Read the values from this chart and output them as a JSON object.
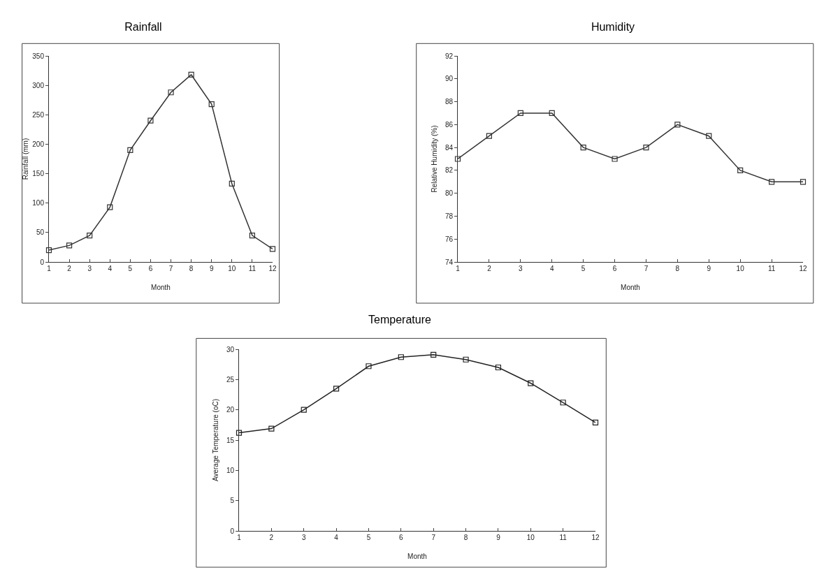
{
  "chart_data": [
    {
      "type": "line",
      "title": "Rainfall",
      "xlabel": "Month",
      "ylabel": "Rainfall (mm)",
      "x": [
        1,
        2,
        3,
        4,
        5,
        6,
        7,
        8,
        9,
        10,
        11,
        12
      ],
      "series": [
        {
          "color": "#333333",
          "values": [
            20,
            28,
            45,
            93,
            190,
            240,
            288,
            318,
            268,
            133,
            45,
            22
          ]
        }
      ],
      "xlim": [
        1,
        12
      ],
      "xticks": [
        1,
        2,
        3,
        4,
        5,
        6,
        7,
        8,
        9,
        10,
        11,
        12
      ],
      "ylim": [
        0,
        350
      ],
      "yticks": [
        0,
        50,
        100,
        150,
        200,
        250,
        300,
        350
      ],
      "marker": "square",
      "line_style": "solid"
    },
    {
      "type": "line",
      "title": "Humidity",
      "xlabel": "Month",
      "ylabel": "Relative Humidity (%)",
      "x": [
        1,
        2,
        3,
        4,
        5,
        6,
        7,
        8,
        9,
        10,
        11,
        12
      ],
      "series": [
        {
          "color": "#333333",
          "values": [
            83,
            85,
            87,
            87,
            84,
            83,
            84,
            86,
            85,
            82,
            81,
            81
          ]
        }
      ],
      "xlim": [
        1,
        12
      ],
      "xticks": [
        1,
        2,
        3,
        4,
        5,
        6,
        7,
        8,
        9,
        10,
        11,
        12
      ],
      "ylim": [
        74,
        92
      ],
      "yticks": [
        74,
        76,
        78,
        80,
        82,
        84,
        86,
        88,
        90,
        92
      ],
      "marker": "square",
      "line_style": "solid"
    },
    {
      "type": "line",
      "title": "Temperature",
      "xlabel": "Month",
      "ylabel": "Average Temperature (oC)",
      "x": [
        1,
        2,
        3,
        4,
        5,
        6,
        7,
        8,
        9,
        10,
        11,
        12
      ],
      "series": [
        {
          "color": "#222222",
          "values": [
            16.2,
            16.9,
            20,
            23.5,
            27.2,
            28.7,
            29.1,
            28.3,
            27,
            24.4,
            21.2,
            17.9
          ]
        }
      ],
      "xlim": [
        1,
        12
      ],
      "xticks": [
        1,
        2,
        3,
        4,
        5,
        6,
        7,
        8,
        9,
        10,
        11,
        12
      ],
      "ylim": [
        0,
        30
      ],
      "yticks": [
        0,
        5,
        10,
        15,
        20,
        25,
        30
      ],
      "marker": "square",
      "line_style": "solid"
    }
  ]
}
